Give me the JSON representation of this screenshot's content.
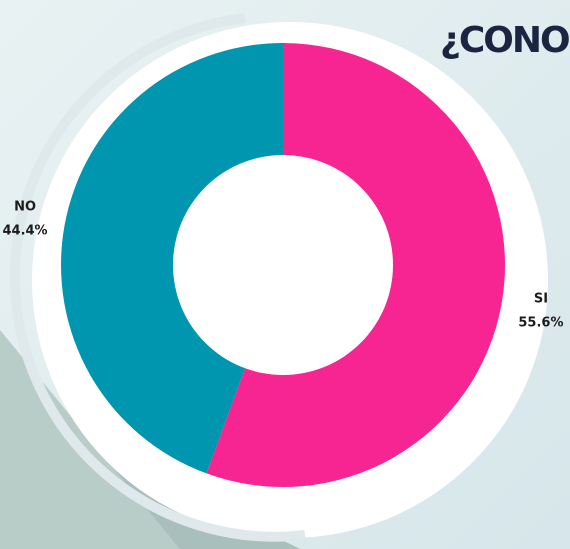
{
  "chart_data": {
    "type": "donut",
    "title": "¿CONOC",
    "categories": [
      "SI",
      "NO"
    ],
    "values": [
      55.6,
      44.4
    ],
    "value_labels": [
      "55.6%",
      "44.4%"
    ],
    "colors": [
      "#f72591",
      "#0096b0"
    ]
  }
}
